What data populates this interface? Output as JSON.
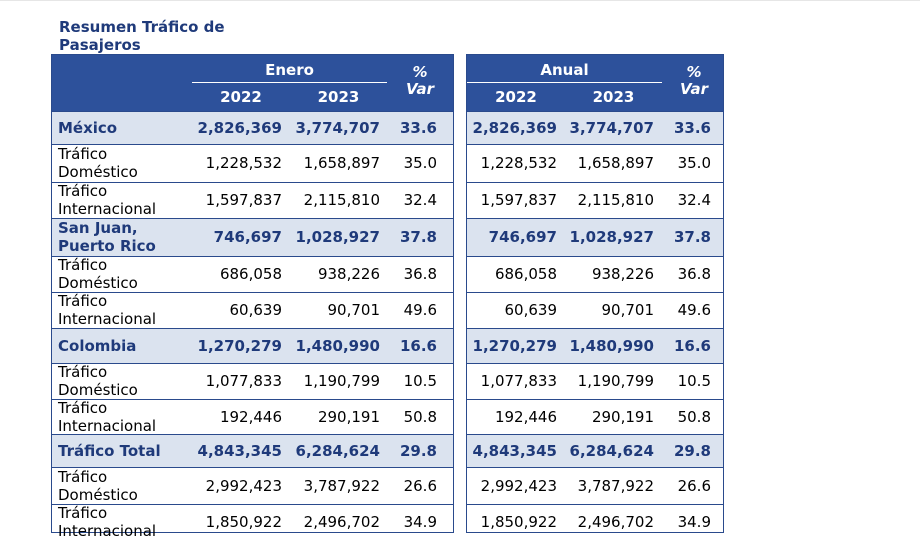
{
  "title": "Resumen Tráfico de Pasajeros",
  "tables": [
    {
      "period": "Enero",
      "years": [
        "2022",
        "2023"
      ],
      "var_label": "% Var",
      "rows": [
        {
          "label": "México",
          "group": true,
          "v2022": "2,826,369",
          "v2023": "3,774,707",
          "var": "33.6"
        },
        {
          "label": "Tráfico Doméstico",
          "group": false,
          "v2022": "1,228,532",
          "v2023": "1,658,897",
          "var": "35.0"
        },
        {
          "label": "Tráfico Internacional",
          "group": false,
          "v2022": "1,597,837",
          "v2023": "2,115,810",
          "var": "32.4"
        },
        {
          "label": "San Juan, Puerto Rico",
          "group": true,
          "v2022": "746,697",
          "v2023": "1,028,927",
          "var": "37.8"
        },
        {
          "label": "Tráfico Doméstico",
          "group": false,
          "v2022": "686,058",
          "v2023": "938,226",
          "var": "36.8"
        },
        {
          "label": "Tráfico Internacional",
          "group": false,
          "v2022": "60,639",
          "v2023": "90,701",
          "var": "49.6"
        },
        {
          "label": "Colombia",
          "group": true,
          "v2022": "1,270,279",
          "v2023": "1,480,990",
          "var": "16.6"
        },
        {
          "label": "Tráfico Doméstico",
          "group": false,
          "v2022": "1,077,833",
          "v2023": "1,190,799",
          "var": "10.5"
        },
        {
          "label": "Tráfico Internacional",
          "group": false,
          "v2022": "192,446",
          "v2023": "290,191",
          "var": "50.8"
        },
        {
          "label": "Tráfico Total",
          "group": true,
          "v2022": "4,843,345",
          "v2023": "6,284,624",
          "var": "29.8"
        },
        {
          "label": "Tráfico Doméstico",
          "group": false,
          "v2022": "2,992,423",
          "v2023": "3,787,922",
          "var": "26.6"
        },
        {
          "label": "Tráfico Internacional",
          "group": false,
          "v2022": "1,850,922",
          "v2023": "2,496,702",
          "var": "34.9"
        }
      ]
    },
    {
      "period": "Anual",
      "years": [
        "2022",
        "2023"
      ],
      "var_label": "% Var",
      "rows": [
        {
          "v2022": "2,826,369",
          "v2023": "3,774,707",
          "var": "33.6",
          "group": true
        },
        {
          "v2022": "1,228,532",
          "v2023": "1,658,897",
          "var": "35.0",
          "group": false
        },
        {
          "v2022": "1,597,837",
          "v2023": "2,115,810",
          "var": "32.4",
          "group": false
        },
        {
          "v2022": "746,697",
          "v2023": "1,028,927",
          "var": "37.8",
          "group": true
        },
        {
          "v2022": "686,058",
          "v2023": "938,226",
          "var": "36.8",
          "group": false
        },
        {
          "v2022": "60,639",
          "v2023": "90,701",
          "var": "49.6",
          "group": false
        },
        {
          "v2022": "1,270,279",
          "v2023": "1,480,990",
          "var": "16.6",
          "group": true
        },
        {
          "v2022": "1,077,833",
          "v2023": "1,190,799",
          "var": "10.5",
          "group": false
        },
        {
          "v2022": "192,446",
          "v2023": "290,191",
          "var": "50.8",
          "group": false
        },
        {
          "v2022": "4,843,345",
          "v2023": "6,284,624",
          "var": "29.8",
          "group": true
        },
        {
          "v2022": "2,992,423",
          "v2023": "3,787,922",
          "var": "26.6",
          "group": false
        },
        {
          "v2022": "1,850,922",
          "v2023": "2,496,702",
          "var": "34.9",
          "group": false
        }
      ]
    }
  ]
}
